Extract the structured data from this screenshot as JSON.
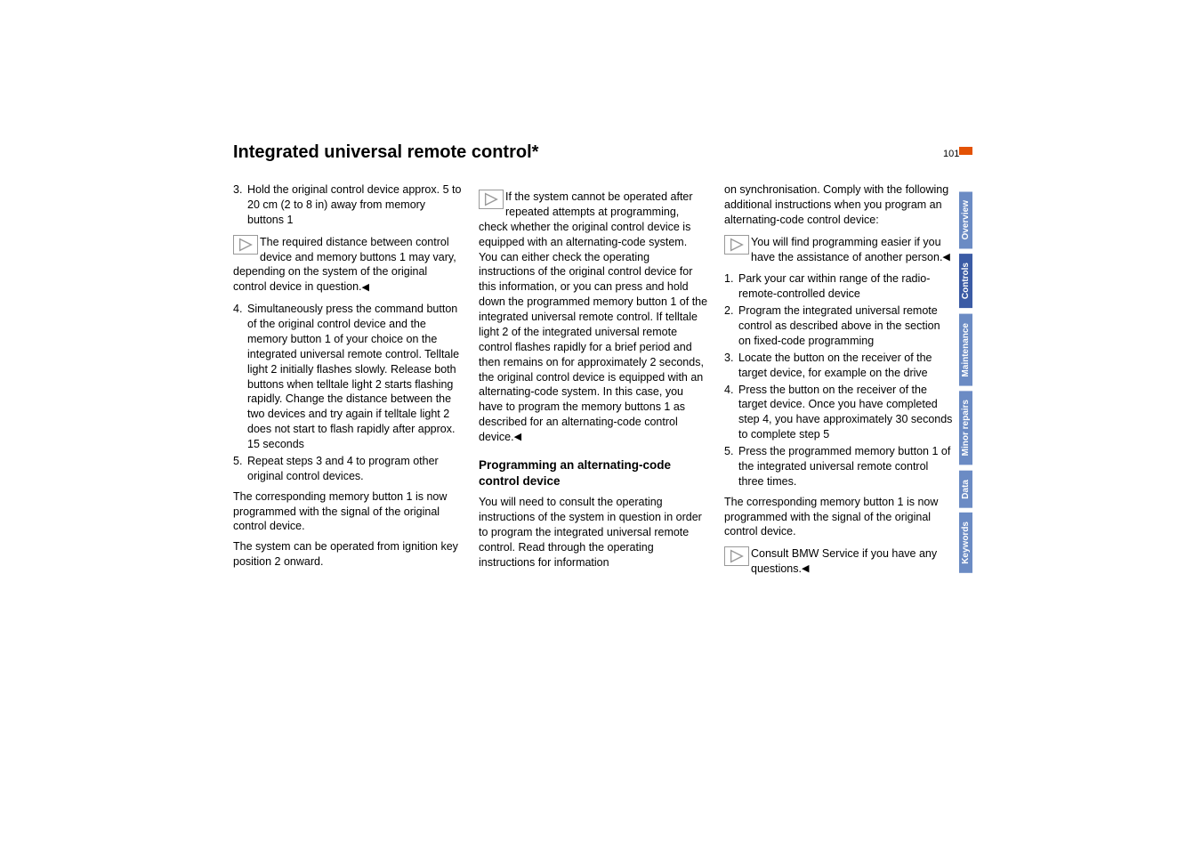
{
  "page_number": "101",
  "title": "Integrated universal remote control*",
  "corner_color": "#e35205",
  "col1": {
    "item3": "Hold the original control device approx. 5 to 20 cm (2 to 8 in) away from memory buttons 1",
    "note1": "The required distance between control device and memory buttons 1 may vary, depending on the system of the original control device in question.",
    "item4": "Simultaneously press the command button of the original control device and the memory button 1 of your choice on the integrated universal remote control. Telltale light 2 initially flashes slowly. Release both buttons when telltale light 2 starts flashing rapidly. Change the distance between the two devices and try again if telltale light 2 does not start to flash rapidly after approx. 15 seconds",
    "item5": "Repeat steps 3 and 4 to program other original control devices.",
    "p1": "The corresponding memory button 1 is now programmed with the signal of the original control device.",
    "p2": "The system can be operated from ignition key position 2 onward."
  },
  "col2": {
    "note1": "If the system cannot be operated after repeated attempts at programming, check whether the original control device is equipped with an alternating-code system. You can either check the operating instructions of the original control device for this information, or you can press and hold down the programmed memory button 1 of the integrated universal remote control. If telltale light 2 of the integrated universal remote control flashes rapidly for a brief period and then remains on for approximately 2 seconds, the original control device is equipped with an alternating-code system. In this case, you have to program the memory buttons 1 as described for an alternating-code control device.",
    "subhead": "Programming an alternating-code control device",
    "p1": "You will need to consult the operating instructions of the system in question in order to program the integrated universal remote control. Read through the operating instructions for information"
  },
  "col3": {
    "p1": "on synchronisation. Comply with the following additional instructions when you program an alternating-code control device:",
    "note1": "You will find programming easier if you have the assistance of another person.",
    "item1": "Park your car within range of the radio-remote-controlled device",
    "item2": "Program the integrated universal remote control as described above in the section on fixed-code programming",
    "item3": "Locate the button on the receiver of the target device, for example on the drive",
    "item4": "Press the button on the receiver of the target device. Once you have completed step 4, you have approximately 30 seconds to complete step 5",
    "item5": "Press the programmed memory button 1 of the integrated universal remote control three times.",
    "p2": "The corresponding memory button 1 is now programmed with the signal of the original control device.",
    "note2": "Consult BMW Service if you have any questions."
  },
  "tabs": [
    {
      "label": "Overview",
      "color": "#6b8bc4"
    },
    {
      "label": "Controls",
      "color": "#3b5ba5"
    },
    {
      "label": "Maintenance",
      "color": "#6b8bc4"
    },
    {
      "label": "Minor repairs",
      "color": "#6b8bc4"
    },
    {
      "label": "Data",
      "color": "#6b8bc4"
    },
    {
      "label": "Keywords",
      "color": "#6b8bc4"
    }
  ]
}
